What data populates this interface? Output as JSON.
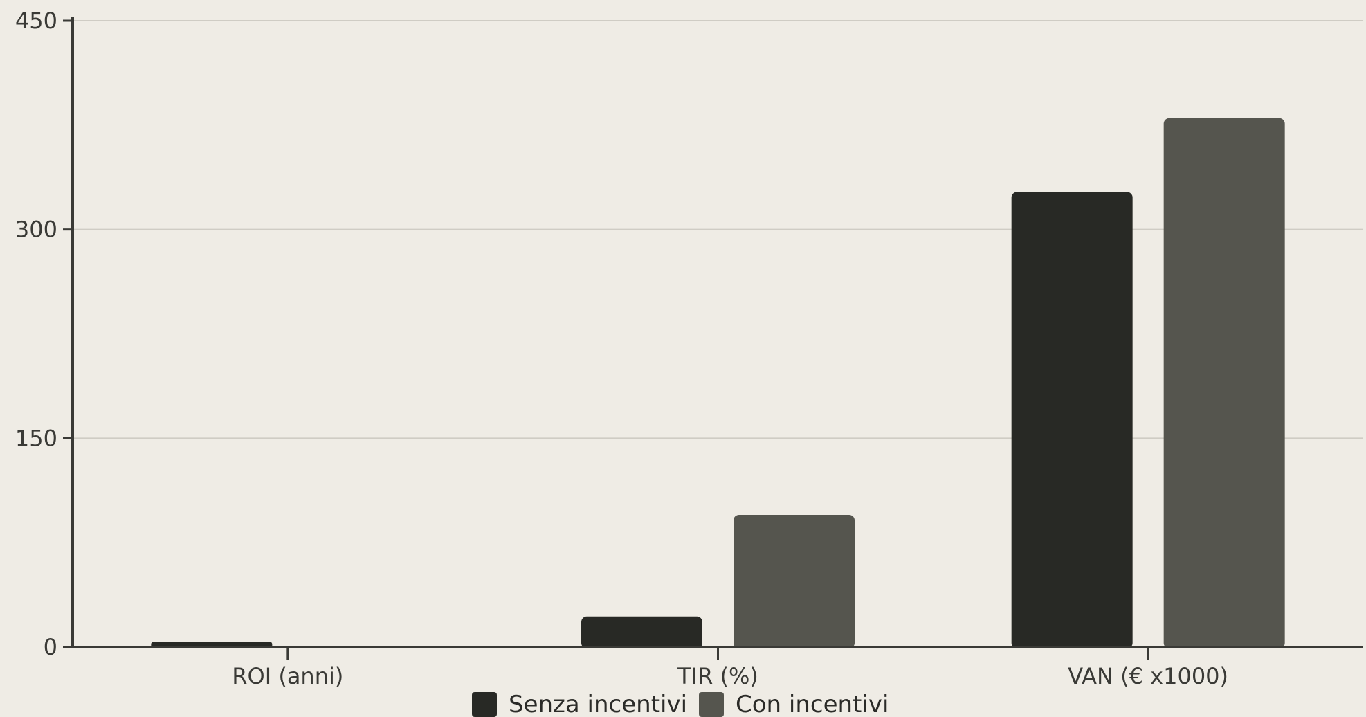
{
  "chart_data": {
    "type": "bar",
    "categories": [
      "ROI (anni)",
      "TIR (%)",
      "VAN (€ x1000)"
    ],
    "series": [
      {
        "name": "Senza incentivi",
        "values": [
          4,
          22,
          327
        ],
        "color": "#282925"
      },
      {
        "name": "Con incentivi",
        "values": [
          0,
          95,
          380
        ],
        "color": "#55554e"
      }
    ],
    "ylim": [
      0,
      450
    ],
    "yticks": [
      0,
      150,
      300,
      450
    ],
    "grid": true,
    "legend_position": "bottom-center",
    "colors": {
      "background": "#efece5",
      "axis": "#3a3a36",
      "grid": "#cfccc4"
    }
  }
}
